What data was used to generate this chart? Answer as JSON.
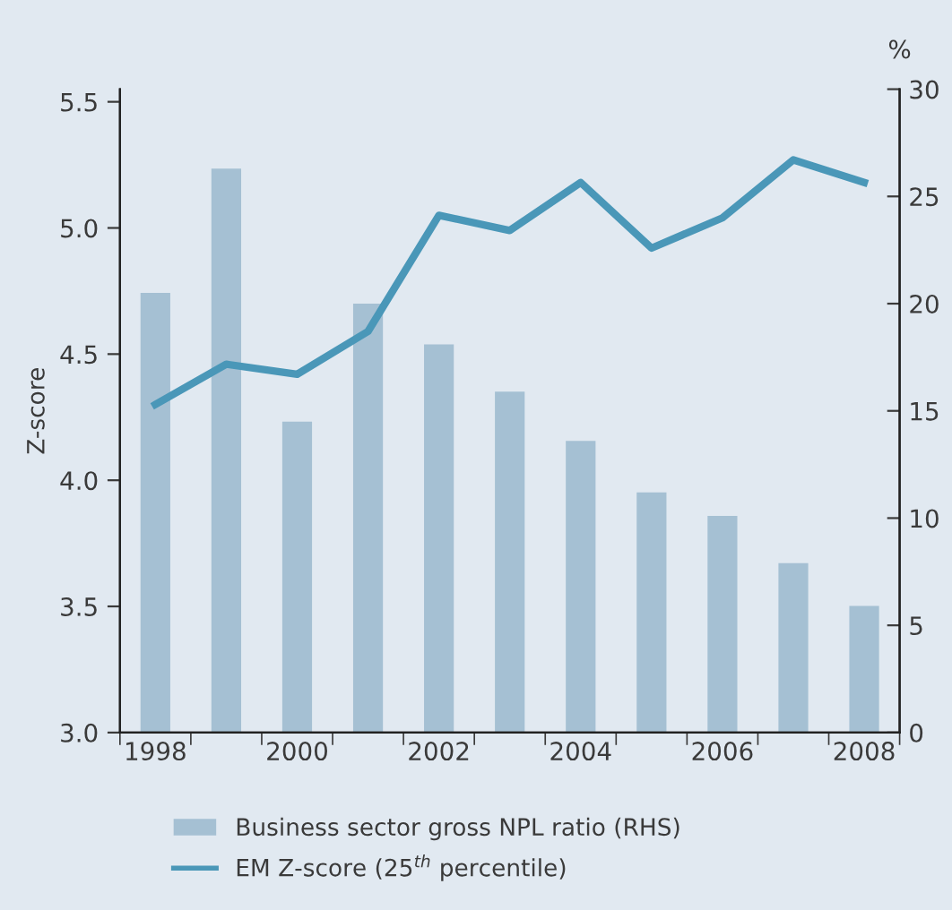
{
  "chart_data": {
    "type": "bar",
    "ylabel": "Z-score",
    "y2label": "%",
    "categories": [
      "1998",
      null,
      "2000",
      null,
      "2002",
      null,
      "2004",
      null,
      "2006",
      null,
      "2008"
    ],
    "series": [
      {
        "name": "Business sector gross NPL ratio (RHS)",
        "axis": "y2",
        "color": "#a5c0d3",
        "values": [
          20.5,
          26.3,
          14.5,
          20.0,
          18.1,
          15.9,
          13.6,
          11.2,
          10.1,
          7.9,
          5.9
        ]
      },
      {
        "name": "EM Z-score (25$^{th}$ percentile)",
        "type": "line",
        "axis": "y",
        "color": "#4a97b8",
        "values": [
          4.3,
          4.46,
          4.42,
          4.59,
          5.05,
          4.99,
          5.18,
          4.92,
          5.04,
          5.27,
          5.18
        ]
      }
    ],
    "ylim": [
      3.0,
      5.55
    ],
    "yticks": [
      {
        "value": 3.0,
        "label": "3.0"
      },
      {
        "value": 3.5,
        "label": "3.5"
      },
      {
        "value": 4.0,
        "label": "4.0"
      },
      {
        "value": 4.5,
        "label": "4.5"
      },
      {
        "value": 5.0,
        "label": "5.0"
      },
      {
        "value": 5.5,
        "label": "5.5"
      }
    ],
    "y2lim": [
      0,
      30
    ],
    "y2ticks": [
      0,
      5,
      10,
      15,
      20,
      25,
      30
    ],
    "legend": "bottom",
    "grid": false,
    "marker": "none",
    "line_style": "solid"
  }
}
